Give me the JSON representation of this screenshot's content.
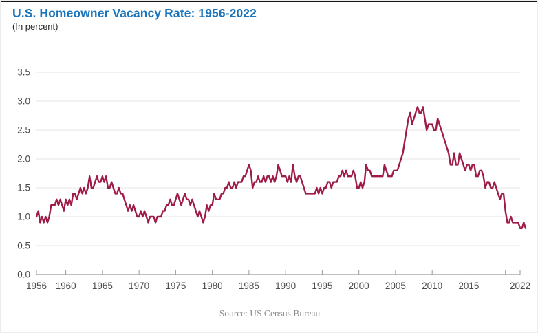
{
  "header": {
    "title": "U.S. Homeowner Vacancy Rate: 1956-2022",
    "subtitle": "(In percent)"
  },
  "footer": {
    "source": "Source: US Census Bureau"
  },
  "colors": {
    "title_blue": "#1b75bc",
    "subtitle_text": "#262626",
    "line_maroon": "#9e1c47",
    "gridline_gray": "#e4e4e4",
    "axis_gray": "#999999",
    "tick_label_gray": "#4a4a4a",
    "source_gray": "#8d8d8d",
    "background": "#ffffff"
  },
  "chart_data": {
    "type": "line",
    "title": "U.S. Homeowner Vacancy Rate: 1956-2022",
    "subtitle": "(In percent)",
    "units": "percent",
    "xlim": [
      1956,
      2022
    ],
    "ylim": [
      0,
      3.5
    ],
    "grid": "horizontal-only",
    "legend": "none",
    "x_start_year": 1956,
    "points_per_year": 4,
    "y_ticks": [
      "0.0",
      "0.5",
      "1.0",
      "1.5",
      "2.0",
      "2.5",
      "3.0",
      "3.5"
    ],
    "x_ticks": [
      {
        "year": 1956,
        "label": "1956"
      },
      {
        "year": 1960,
        "label": "1960"
      },
      {
        "year": 1965,
        "label": "1965"
      },
      {
        "year": 1970,
        "label": "1970"
      },
      {
        "year": 1975,
        "label": "1975"
      },
      {
        "year": 1980,
        "label": "1980"
      },
      {
        "year": 1985,
        "label": "1985"
      },
      {
        "year": 1990,
        "label": "1990"
      },
      {
        "year": 1995,
        "label": "1995"
      },
      {
        "year": 2000,
        "label": "2000"
      },
      {
        "year": 2005,
        "label": "2005"
      },
      {
        "year": 2010,
        "label": "2010"
      },
      {
        "year": 2015,
        "label": "2015"
      },
      {
        "year": 2020,
        "label": ""
      },
      {
        "year": 2022,
        "label": "2022"
      }
    ],
    "series": [
      {
        "name": "Homeowner vacancy rate (quarterly, percent)",
        "values": [
          1.0,
          1.1,
          0.9,
          1.0,
          0.9,
          1.0,
          0.9,
          1.0,
          1.2,
          1.2,
          1.2,
          1.3,
          1.2,
          1.3,
          1.2,
          1.1,
          1.3,
          1.2,
          1.3,
          1.2,
          1.4,
          1.4,
          1.3,
          1.4,
          1.5,
          1.4,
          1.5,
          1.4,
          1.5,
          1.7,
          1.5,
          1.5,
          1.6,
          1.7,
          1.6,
          1.6,
          1.7,
          1.6,
          1.7,
          1.5,
          1.5,
          1.6,
          1.5,
          1.4,
          1.4,
          1.5,
          1.4,
          1.4,
          1.3,
          1.2,
          1.1,
          1.2,
          1.1,
          1.2,
          1.1,
          1.0,
          1.0,
          1.1,
          1.0,
          1.1,
          1.0,
          0.9,
          1.0,
          1.0,
          1.0,
          0.9,
          1.0,
          1.0,
          1.0,
          1.1,
          1.1,
          1.2,
          1.2,
          1.3,
          1.2,
          1.2,
          1.3,
          1.4,
          1.3,
          1.2,
          1.3,
          1.4,
          1.3,
          1.3,
          1.2,
          1.3,
          1.2,
          1.1,
          1.0,
          1.1,
          1.0,
          0.9,
          1.0,
          1.2,
          1.1,
          1.2,
          1.2,
          1.4,
          1.3,
          1.3,
          1.3,
          1.4,
          1.4,
          1.5,
          1.5,
          1.6,
          1.5,
          1.5,
          1.6,
          1.5,
          1.6,
          1.6,
          1.6,
          1.7,
          1.7,
          1.8,
          1.9,
          1.8,
          1.5,
          1.6,
          1.6,
          1.7,
          1.6,
          1.6,
          1.7,
          1.6,
          1.7,
          1.7,
          1.6,
          1.7,
          1.6,
          1.7,
          1.9,
          1.8,
          1.7,
          1.7,
          1.7,
          1.6,
          1.7,
          1.6,
          1.9,
          1.7,
          1.6,
          1.7,
          1.7,
          1.6,
          1.5,
          1.4,
          1.4,
          1.4,
          1.4,
          1.4,
          1.4,
          1.5,
          1.4,
          1.5,
          1.4,
          1.5,
          1.5,
          1.6,
          1.6,
          1.5,
          1.6,
          1.6,
          1.6,
          1.7,
          1.7,
          1.8,
          1.7,
          1.8,
          1.7,
          1.7,
          1.7,
          1.8,
          1.7,
          1.5,
          1.5,
          1.6,
          1.5,
          1.6,
          1.9,
          1.8,
          1.8,
          1.7,
          1.7,
          1.7,
          1.7,
          1.7,
          1.7,
          1.7,
          1.9,
          1.8,
          1.7,
          1.7,
          1.7,
          1.8,
          1.8,
          1.8,
          1.9,
          2.0,
          2.1,
          2.3,
          2.5,
          2.7,
          2.8,
          2.6,
          2.7,
          2.8,
          2.9,
          2.8,
          2.8,
          2.9,
          2.7,
          2.5,
          2.6,
          2.6,
          2.6,
          2.5,
          2.5,
          2.7,
          2.6,
          2.5,
          2.4,
          2.3,
          2.2,
          2.1,
          1.9,
          1.9,
          2.1,
          1.9,
          1.9,
          2.1,
          2.0,
          1.9,
          1.8,
          1.9,
          1.9,
          1.8,
          1.9,
          1.9,
          1.7,
          1.7,
          1.8,
          1.8,
          1.7,
          1.5,
          1.6,
          1.6,
          1.5,
          1.5,
          1.6,
          1.5,
          1.4,
          1.3,
          1.4,
          1.4,
          1.1,
          0.9,
          0.9,
          1.0,
          0.9,
          0.9,
          0.9,
          0.9,
          0.8,
          0.8,
          0.9,
          0.8
        ]
      }
    ]
  }
}
